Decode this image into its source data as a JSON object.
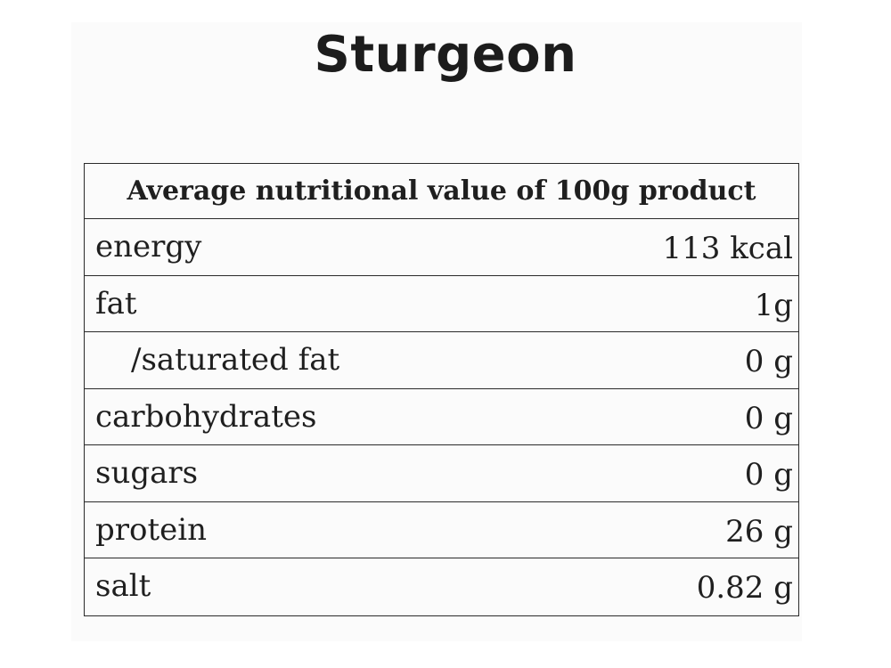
{
  "title": "Sturgeon",
  "table": {
    "header": "Average nutritional value of 100g product",
    "rows": [
      {
        "label": "energy",
        "value": "113 kcal"
      },
      {
        "label": "fat",
        "value": "1g"
      },
      {
        "label": "/saturated fat",
        "value": "0 g"
      },
      {
        "label": "carbohydrates",
        "value": "0 g"
      },
      {
        "label": "sugars",
        "value": "0 g"
      },
      {
        "label": "protein",
        "value": "26 g"
      },
      {
        "label": "salt",
        "value": "0.82 g"
      }
    ]
  },
  "colors": {
    "text": "#1f1f1f",
    "border": "#2a2a2a",
    "background": "#fbfbfb"
  }
}
